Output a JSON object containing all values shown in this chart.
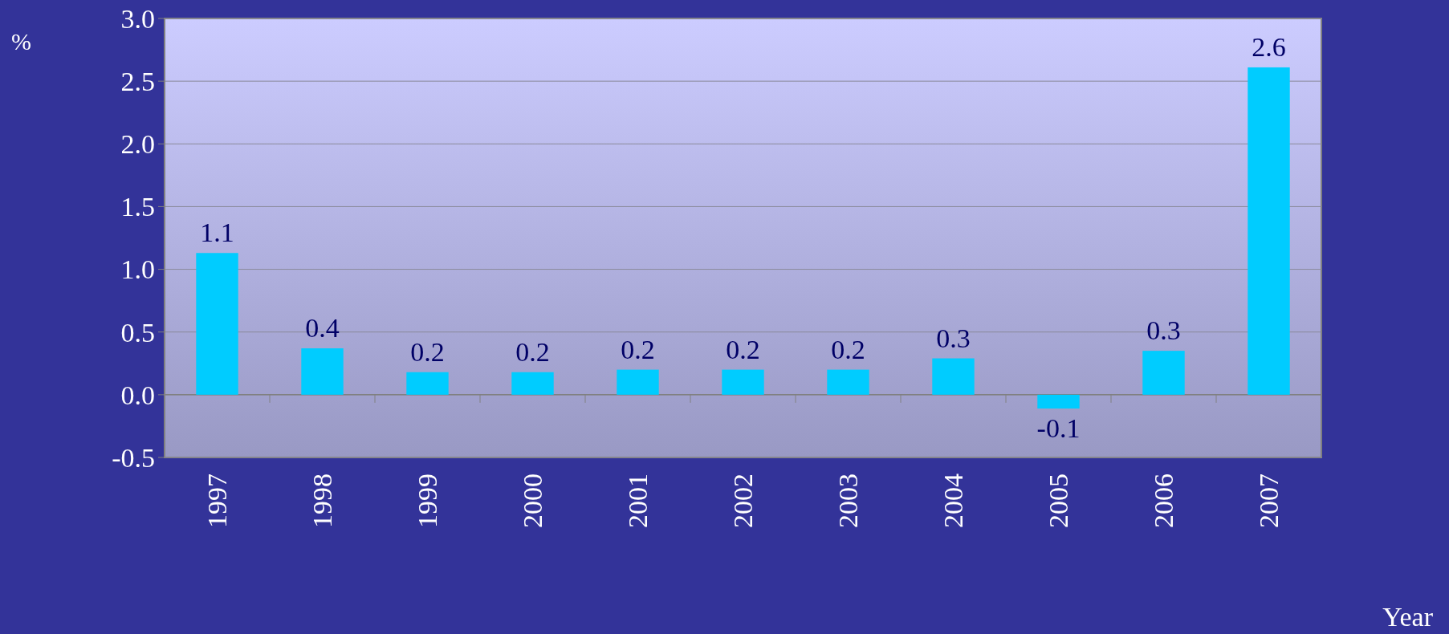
{
  "chart_data": {
    "type": "bar",
    "xlabel": "Year",
    "ylabel": "%",
    "categories": [
      "1997",
      "1998",
      "1999",
      "2000",
      "2001",
      "2002",
      "2003",
      "2004",
      "2005",
      "2006",
      "2007"
    ],
    "values": [
      1.13,
      0.37,
      0.18,
      0.18,
      0.2,
      0.2,
      0.2,
      0.29,
      -0.11,
      0.35,
      2.61
    ],
    "value_labels": [
      "1.1",
      "0.4",
      "0.2",
      "0.2",
      "0.2",
      "0.2",
      "0.2",
      "0.3",
      "-0.1",
      "0.3",
      "2.6"
    ],
    "color": "#00ccff",
    "ylim": [
      -0.5,
      3.0
    ],
    "yticks": [
      {
        "value": -0.5,
        "label": "-0.5"
      },
      {
        "value": 0,
        "label": "0.0"
      },
      {
        "value": 0.5,
        "label": "0.5"
      },
      {
        "value": 1,
        "label": "1.0"
      },
      {
        "value": 1.5,
        "label": "1.5"
      },
      {
        "value": 2,
        "label": "2.0"
      },
      {
        "value": 2.5,
        "label": "2.5"
      },
      {
        "value": 3,
        "label": "3.0"
      }
    ],
    "grid": "y"
  }
}
